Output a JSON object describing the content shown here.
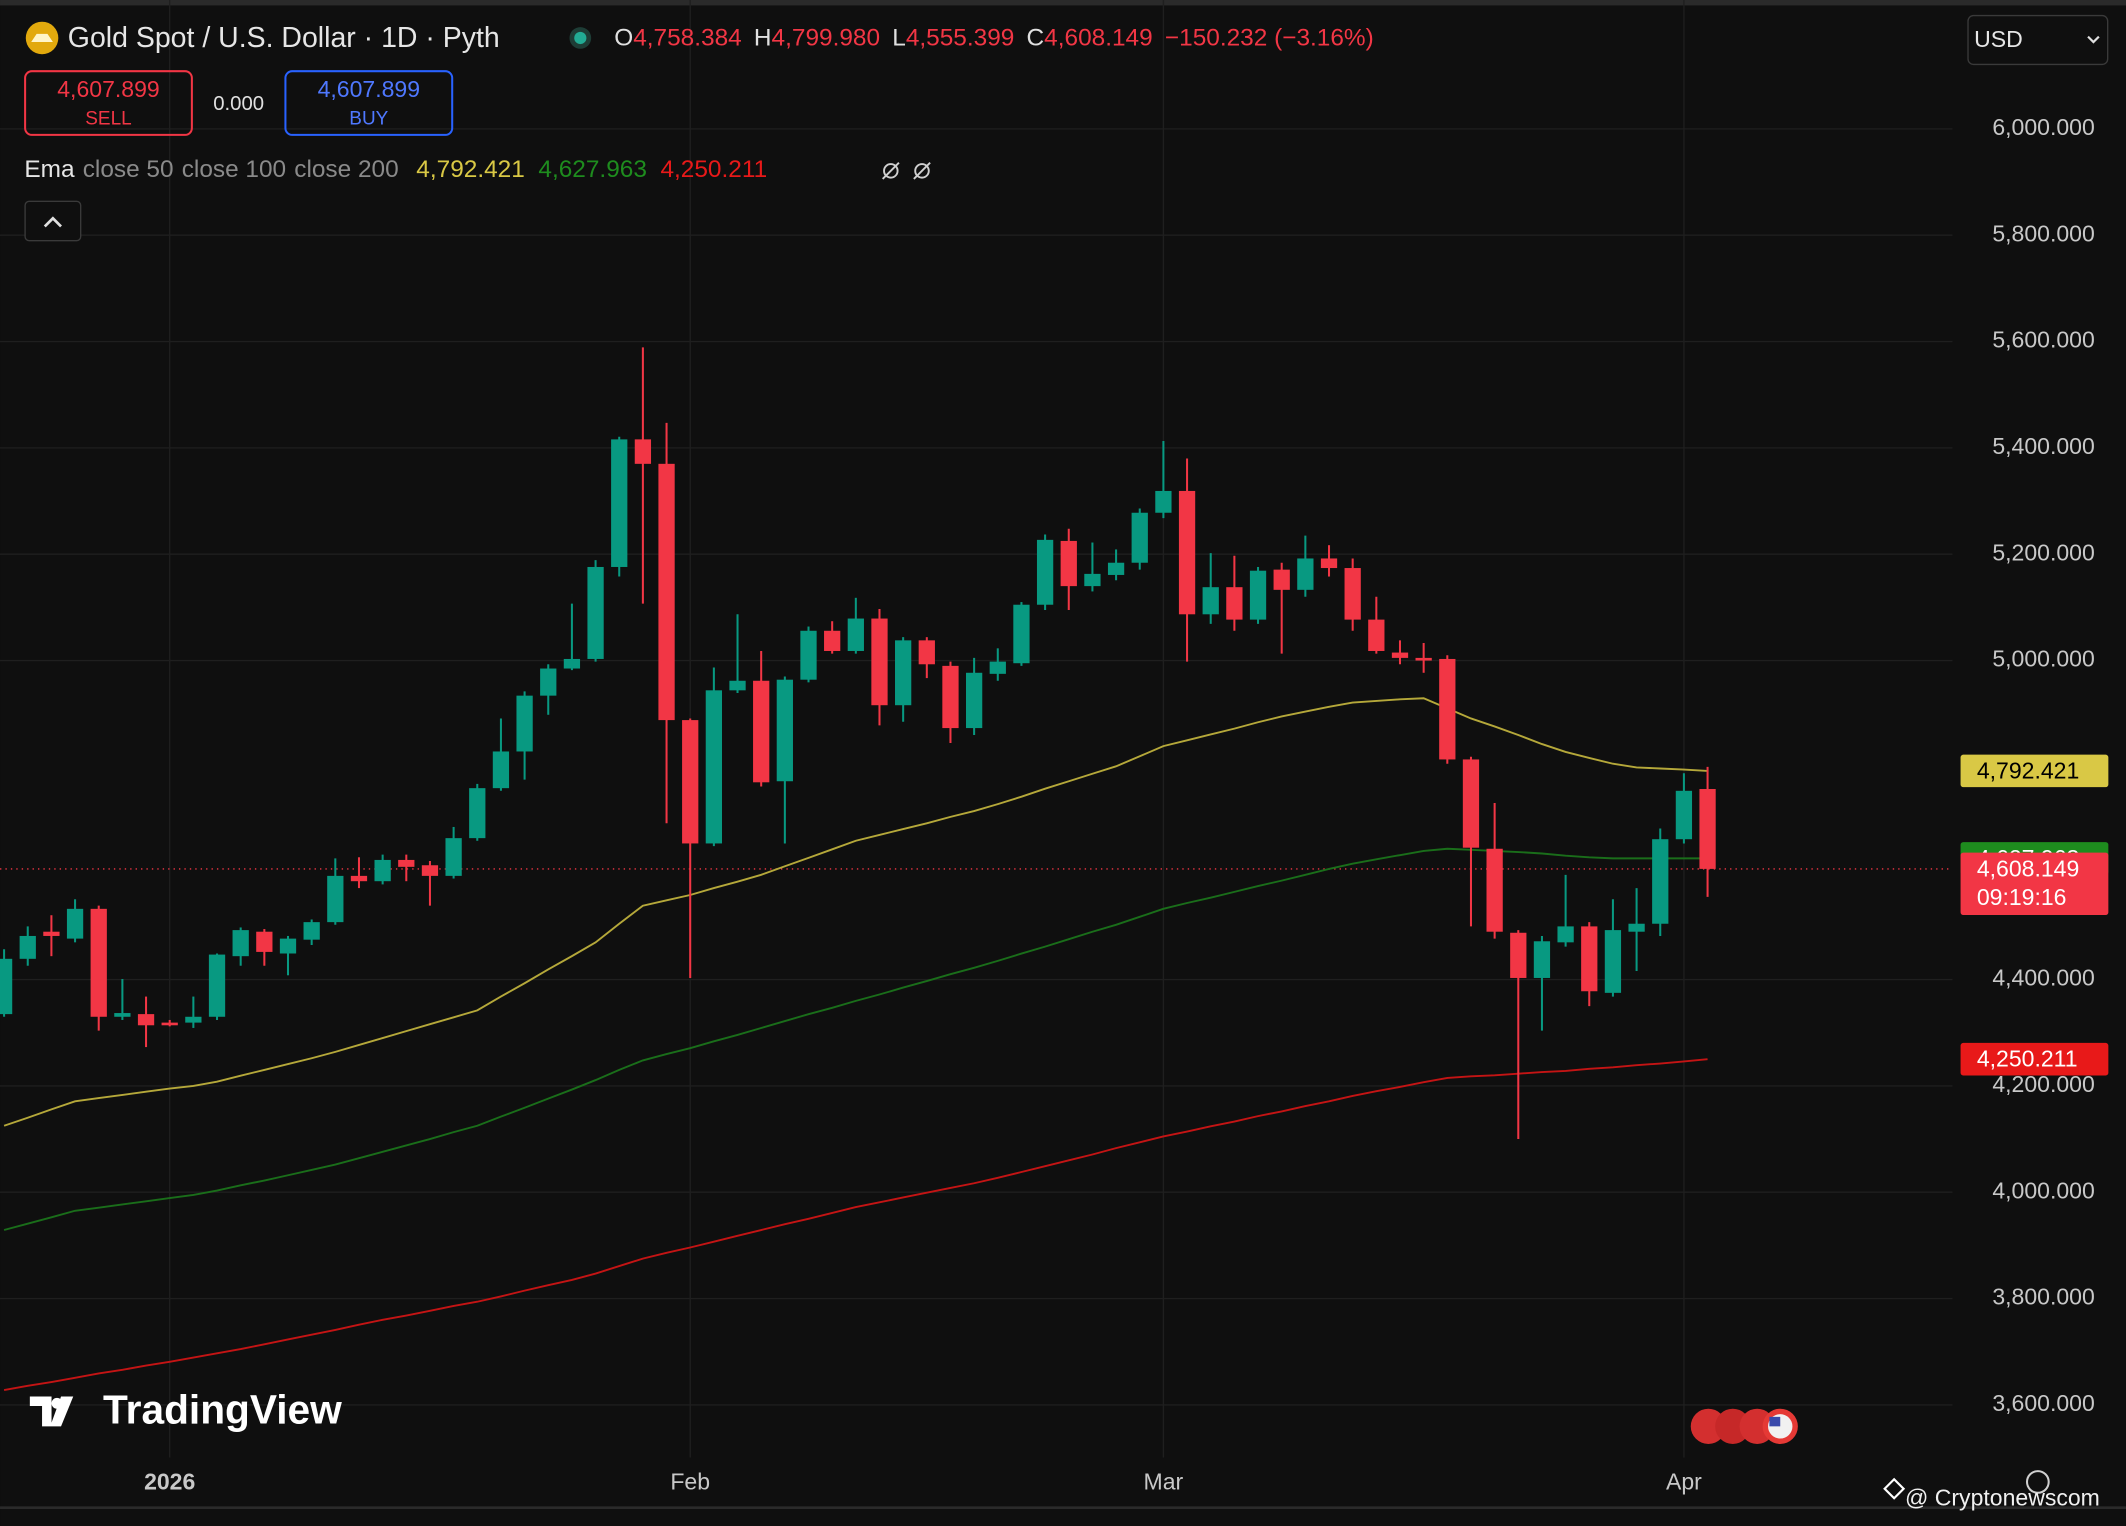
{
  "chart_data": {
    "type": "candlestick",
    "title": "Gold Spot / U.S. Dollar · 1D · Pyth",
    "ohlc_header": [
      {
        "label": "O",
        "value": "4,758.384"
      },
      {
        "label": "H",
        "value": "4,799.980"
      },
      {
        "label": "L",
        "value": "4,555.399"
      },
      {
        "label": "C",
        "value": "4,608.149"
      }
    ],
    "change": "−150.232 (−3.16%)",
    "sell": {
      "price": "4,607.899",
      "label": "SELL"
    },
    "spread": "0.000",
    "buy": {
      "price": "4,607.899",
      "label": "BUY"
    },
    "currency": "USD",
    "watermark": "TradingView",
    "credit": "@ Cryptonewscom",
    "up_color": "#089981",
    "down_color": "#f23645",
    "grid": true,
    "categories": [
      null,
      null,
      null,
      null,
      null,
      null,
      null,
      "2026",
      null,
      null,
      null,
      null,
      null,
      null,
      null,
      null,
      null,
      null,
      null,
      null,
      null,
      null,
      null,
      null,
      null,
      null,
      null,
      null,
      null,
      "Feb",
      null,
      null,
      null,
      null,
      null,
      null,
      null,
      null,
      null,
      null,
      null,
      null,
      null,
      null,
      null,
      null,
      null,
      null,
      null,
      "Mar",
      null,
      null,
      null,
      null,
      null,
      null,
      null,
      null,
      null,
      null,
      null,
      null,
      null,
      null,
      null,
      null,
      null,
      null,
      null,
      null,
      null,
      "Apr",
      null
    ],
    "open": [
      4335,
      4439,
      4490,
      4477,
      4533,
      4330,
      4335,
      4319,
      4319,
      4330,
      4444,
      4490,
      4449,
      4475,
      4508,
      4595,
      4585,
      4625,
      4615,
      4595,
      4666,
      4760,
      4829,
      4934,
      4985,
      5003,
      5176,
      5416,
      5370,
      4888,
      4656,
      4944,
      4962,
      4773,
      4964,
      5056,
      5018,
      5079,
      4916,
      5038,
      4990,
      4873,
      4975,
      4995,
      5105,
      5225,
      5140,
      5161,
      5184,
      5278,
      5319,
      5087,
      5138,
      5077,
      5171,
      5133,
      5192,
      5174,
      5077,
      5015,
      5005,
      5003,
      4814,
      4646,
      4488,
      4403,
      4470,
      4500,
      4375,
      4490,
      4505,
      4664,
      4758.384
    ],
    "high": [
      4457,
      4500,
      4521,
      4551,
      4539,
      4401,
      4368,
      4324,
      4368,
      4449,
      4498,
      4495,
      4482,
      4513,
      4628,
      4630,
      4635,
      4635,
      4623,
      4687,
      4768,
      4891,
      4942,
      4993,
      5107,
      5189,
      5421,
      5589,
      5447,
      4891,
      4987,
      5087,
      5018,
      4970,
      5064,
      5074,
      5118,
      5097,
      5044,
      5044,
      4998,
      5005,
      5023,
      5110,
      5237,
      5248,
      5222,
      5209,
      5286,
      5413,
      5380,
      5202,
      5197,
      5176,
      5184,
      5235,
      5217,
      5192,
      5120,
      5038,
      5033,
      5010,
      4819,
      4732,
      4493,
      4482,
      4597,
      4508,
      4551,
      4572,
      4684,
      4788,
      4799.98
    ],
    "low": [
      4330,
      4426,
      4444,
      4470,
      4304,
      4324,
      4273,
      4312,
      4309,
      4324,
      4426,
      4426,
      4408,
      4465,
      4503,
      4572,
      4579,
      4585,
      4539,
      4590,
      4661,
      4755,
      4776,
      4898,
      4982,
      4998,
      5158,
      5107,
      4694,
      4403,
      4651,
      4939,
      4763,
      4656,
      4959,
      5013,
      5013,
      4878,
      4885,
      4967,
      4845,
      4860,
      4962,
      4990,
      5095,
      5095,
      5130,
      5151,
      5171,
      5268,
      4998,
      5069,
      5056,
      5069,
      5013,
      5120,
      5158,
      5056,
      5013,
      4993,
      4977,
      4806,
      4500,
      4477,
      4100,
      4304,
      4462,
      4350,
      4368,
      4416,
      4482,
      4656,
      4555.399
    ],
    "close": [
      4439,
      4482,
      4482,
      4533,
      4330,
      4337,
      4314,
      4314,
      4330,
      4447,
      4493,
      4452,
      4477,
      4508,
      4595,
      4585,
      4625,
      4612,
      4595,
      4666,
      4760,
      4829,
      4934,
      4985,
      5003,
      5176,
      5416,
      5370,
      4888,
      4656,
      4944,
      4962,
      4771,
      4964,
      5056,
      5018,
      5079,
      4916,
      5038,
      4993,
      4873,
      4977,
      4998,
      5105,
      5227,
      5140,
      5163,
      5184,
      5278,
      5319,
      5087,
      5138,
      5077,
      5169,
      5133,
      5192,
      5174,
      5077,
      5018,
      5005,
      5000,
      4814,
      4648,
      4490,
      4403,
      4472,
      4500,
      4378,
      4493,
      4505,
      4664,
      4755,
      4608.149
    ],
    "last_price": {
      "value": 4608.149,
      "label": "4,608.149"
    },
    "countdown": "09:19:16",
    "indicator": {
      "name": "Ema",
      "series": [
        {
          "name": "close 50",
          "color": "#d9c845",
          "line_color": "#b5a83a",
          "last_label": "4,792.421",
          "values": [
            4125,
            4140,
            4156,
            4171,
            4177,
            4183,
            4189,
            4195,
            4200,
            4208,
            4219,
            4230,
            4241,
            4252,
            4264,
            4277,
            4290,
            4303,
            4316,
            4329,
            4342,
            4368,
            4393,
            4419,
            4444,
            4470,
            4505,
            4539,
            4549,
            4559,
            4572,
            4584,
            4597,
            4613,
            4629,
            4645,
            4661,
            4672,
            4683,
            4694,
            4706,
            4717,
            4730,
            4744,
            4759,
            4773,
            4787,
            4801,
            4820,
            4839,
            4850,
            4861,
            4872,
            4884,
            4895,
            4904,
            4913,
            4921,
            4924,
            4927,
            4929,
            4910,
            4891,
            4876,
            4860,
            4843,
            4828,
            4817,
            4806,
            4799,
            4797,
            4795,
            4792.421
          ]
        },
        {
          "name": "close 100",
          "color": "#1e8c1e",
          "line_color": "#1a6e1a",
          "last_label": "4,627.963",
          "values": [
            3929,
            3941,
            3953,
            3965,
            3971,
            3977,
            3983,
            3989,
            3995,
            4003,
            4013,
            4022,
            4032,
            4042,
            4052,
            4064,
            4076,
            4088,
            4100,
            4113,
            4125,
            4142,
            4159,
            4176,
            4193,
            4211,
            4230,
            4248,
            4260,
            4271,
            4284,
            4296,
            4309,
            4322,
            4335,
            4347,
            4360,
            4372,
            4385,
            4397,
            4410,
            4422,
            4435,
            4449,
            4462,
            4476,
            4490,
            4503,
            4518,
            4533,
            4544,
            4554,
            4565,
            4576,
            4586,
            4597,
            4608,
            4618,
            4626,
            4634,
            4642,
            4646,
            4644,
            4642,
            4640,
            4637,
            4633,
            4630,
            4628,
            4628,
            4628,
            4628,
            4627.963
          ]
        },
        {
          "name": "close 200",
          "color": "#e81919",
          "line_color": "#c41414",
          "last_label": "4,250.211",
          "values": [
            3628,
            3636,
            3643,
            3651,
            3659,
            3666,
            3674,
            3681,
            3689,
            3697,
            3705,
            3714,
            3723,
            3732,
            3741,
            3751,
            3760,
            3768,
            3777,
            3786,
            3794,
            3804,
            3815,
            3825,
            3835,
            3847,
            3861,
            3875,
            3886,
            3896,
            3907,
            3918,
            3929,
            3940,
            3950,
            3961,
            3972,
            3981,
            3990,
            3999,
            4008,
            4017,
            4027,
            4038,
            4049,
            4060,
            4071,
            4083,
            4094,
            4105,
            4114,
            4124,
            4133,
            4143,
            4152,
            4162,
            4171,
            4181,
            4190,
            4198,
            4207,
            4215,
            4218,
            4220,
            4223,
            4226,
            4228,
            4232,
            4235,
            4239,
            4242,
            4246,
            4250.211
          ]
        }
      ]
    },
    "ylim": [
      3501,
      6222
    ],
    "yticks": [
      {
        "value": 6000,
        "label": "6,000.000"
      },
      {
        "value": 5800,
        "label": "5,800.000"
      },
      {
        "value": 5600,
        "label": "5,600.000"
      },
      {
        "value": 5400,
        "label": "5,400.000"
      },
      {
        "value": 5200,
        "label": "5,200.000"
      },
      {
        "value": 5000,
        "label": "5,000.000"
      },
      {
        "value": 4400,
        "label": "4,400.000"
      },
      {
        "value": 4200,
        "label": "4,200.000"
      },
      {
        "value": 4000,
        "label": "4,000.000"
      },
      {
        "value": 3800,
        "label": "3,800.000"
      },
      {
        "value": 3600,
        "label": "3,600.000"
      }
    ]
  }
}
